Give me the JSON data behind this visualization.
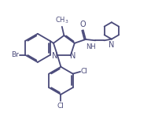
{
  "bg_color": "#ffffff",
  "line_color": "#4a4a7a",
  "line_width": 1.3,
  "text_color": "#4a4a7a",
  "font_size": 6.5,
  "figsize": [
    1.92,
    1.56
  ],
  "dpi": 100,
  "xlim": [
    0,
    10
  ],
  "ylim": [
    -1,
    8
  ]
}
